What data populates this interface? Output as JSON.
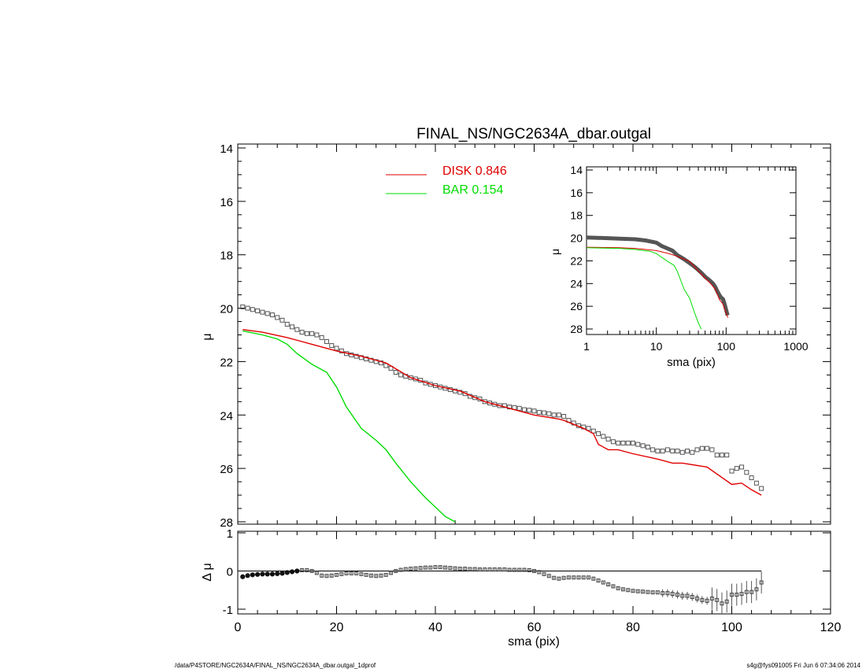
{
  "chart_data": [
    {
      "panel": "main",
      "type": "scatter",
      "title": "FINAL_NS/NGC2634A_dbar.outgal",
      "xlabel": "",
      "ylabel": "μ",
      "xlim": [
        0,
        120
      ],
      "ylim": [
        28,
        14
      ],
      "y_inverted": true,
      "x_tick_labels": [],
      "y_tick_labels": [
        "14",
        "16",
        "18",
        "20",
        "22",
        "24",
        "26",
        "28"
      ],
      "legend": [
        {
          "name": "DISK",
          "value": "0.846",
          "color": "#e00000"
        },
        {
          "name": "BAR",
          "value": "0.154",
          "color": "#00dd00"
        }
      ],
      "legend_position": "top-center",
      "series": [
        {
          "name": "data",
          "style": "markers",
          "color": "#555555",
          "x": [
            1,
            2,
            3,
            4,
            5,
            6,
            7,
            8,
            9,
            10,
            11,
            12,
            13,
            14,
            15,
            16,
            17,
            18,
            19,
            20,
            21,
            22,
            23,
            24,
            25,
            26,
            27,
            28,
            29,
            30,
            31,
            32,
            33,
            34,
            35,
            36,
            37,
            38,
            39,
            40,
            41,
            42,
            43,
            44,
            45,
            46,
            47,
            48,
            49,
            50,
            51,
            52,
            53,
            54,
            55,
            56,
            57,
            58,
            59,
            60,
            61,
            62,
            63,
            64,
            65,
            66,
            67,
            68,
            69,
            70,
            71,
            72,
            73,
            74,
            75,
            76,
            77,
            78,
            79,
            80,
            81,
            82,
            83,
            84,
            85,
            86,
            87,
            88,
            89,
            90,
            91,
            92,
            93,
            94,
            95,
            96,
            97,
            98,
            99,
            100,
            101,
            102,
            103,
            104,
            105,
            106
          ],
          "y": [
            19.95,
            20.0,
            20.05,
            20.1,
            20.15,
            20.2,
            20.25,
            20.35,
            20.45,
            20.6,
            20.7,
            20.8,
            20.9,
            20.95,
            20.95,
            21.0,
            21.1,
            21.25,
            21.4,
            21.5,
            21.6,
            21.7,
            21.75,
            21.8,
            21.85,
            21.9,
            21.95,
            22.0,
            22.05,
            22.15,
            22.25,
            22.4,
            22.5,
            22.55,
            22.6,
            22.65,
            22.7,
            22.8,
            22.85,
            22.9,
            22.95,
            23.0,
            23.05,
            23.1,
            23.15,
            23.2,
            23.3,
            23.35,
            23.4,
            23.5,
            23.55,
            23.6,
            23.65,
            23.65,
            23.7,
            23.72,
            23.75,
            23.8,
            23.82,
            23.85,
            23.9,
            23.92,
            23.95,
            24.0,
            24.0,
            24.05,
            24.2,
            24.3,
            24.4,
            24.45,
            24.5,
            24.6,
            24.7,
            24.8,
            24.9,
            25.0,
            25.05,
            25.05,
            25.05,
            25.05,
            25.1,
            25.15,
            25.2,
            25.3,
            25.35,
            25.35,
            25.3,
            25.35,
            25.35,
            25.4,
            25.35,
            25.4,
            25.3,
            25.25,
            25.25,
            25.3,
            25.5,
            25.5,
            25.5,
            26.1,
            26.0,
            25.95,
            26.15,
            26.35,
            26.55,
            26.75
          ]
        },
        {
          "name": "DISK",
          "style": "line",
          "color": "#e00000",
          "x": [
            1,
            5,
            10,
            15,
            20,
            25,
            30,
            35,
            40,
            45,
            50,
            55,
            60,
            65,
            66,
            70,
            72,
            73,
            75,
            77,
            80,
            85,
            88,
            90,
            95,
            100,
            102,
            104,
            106
          ],
          "y": [
            20.8,
            20.9,
            21.1,
            21.35,
            21.6,
            21.8,
            22.05,
            22.6,
            22.9,
            23.1,
            23.5,
            23.75,
            24.0,
            24.15,
            24.2,
            24.5,
            24.7,
            25.1,
            25.3,
            25.3,
            25.45,
            25.65,
            25.8,
            25.8,
            25.95,
            26.6,
            26.55,
            26.8,
            27.0
          ]
        },
        {
          "name": "BAR",
          "style": "line",
          "color": "#00dd00",
          "x": [
            1,
            5,
            8,
            10,
            12,
            15,
            18,
            20,
            22,
            25,
            28,
            30,
            32,
            35,
            38,
            40,
            42,
            44
          ],
          "y": [
            20.85,
            21.0,
            21.15,
            21.35,
            21.7,
            22.1,
            22.4,
            22.95,
            23.7,
            24.5,
            24.95,
            25.3,
            25.8,
            26.5,
            27.1,
            27.45,
            27.8,
            28.0
          ]
        }
      ]
    },
    {
      "panel": "inset",
      "type": "line",
      "title": "",
      "xlabel": "sma (pix)",
      "ylabel": "μ",
      "x_scale": "log",
      "xlim": [
        1,
        1000
      ],
      "ylim": [
        28,
        14
      ],
      "y_inverted": true,
      "x_tick_labels": [
        "1",
        "10",
        "100",
        "1000"
      ],
      "y_tick_labels": [
        "14",
        "16",
        "18",
        "20",
        "22",
        "24",
        "26",
        "28"
      ],
      "series": [
        {
          "name": "data",
          "style": "thick-line",
          "color": "#555555",
          "x": [
            1,
            2,
            3,
            5,
            7,
            10,
            12,
            15,
            17,
            20,
            25,
            30,
            35,
            40,
            45,
            50,
            55,
            60,
            65,
            70,
            75,
            80,
            85,
            90,
            95,
            100,
            105
          ],
          "y": [
            19.95,
            20.0,
            20.05,
            20.1,
            20.2,
            20.4,
            20.7,
            20.95,
            21.1,
            21.5,
            21.85,
            22.2,
            22.5,
            22.8,
            23.1,
            23.4,
            23.6,
            23.8,
            24.0,
            24.3,
            24.7,
            25.0,
            25.25,
            25.35,
            25.8,
            26.3,
            26.8
          ]
        },
        {
          "name": "DISK",
          "style": "line",
          "color": "#e00000",
          "x": [
            1,
            3,
            5,
            10,
            15,
            20,
            30,
            40,
            50,
            60,
            70,
            80,
            90,
            100,
            106
          ],
          "y": [
            20.8,
            20.85,
            20.9,
            21.1,
            21.35,
            21.6,
            22.05,
            22.9,
            23.5,
            24.0,
            24.5,
            25.4,
            25.8,
            26.6,
            27.0
          ]
        },
        {
          "name": "BAR",
          "style": "line",
          "color": "#00dd00",
          "x": [
            1,
            3,
            5,
            8,
            10,
            12,
            15,
            18,
            20,
            25,
            30,
            35,
            40,
            44
          ],
          "y": [
            20.85,
            20.9,
            21.0,
            21.15,
            21.35,
            21.7,
            22.1,
            22.4,
            22.95,
            24.5,
            25.3,
            26.5,
            27.45,
            28.0
          ]
        }
      ]
    },
    {
      "panel": "residual",
      "type": "scatter",
      "title": "",
      "xlabel": "sma (pix)",
      "ylabel": "Δ μ",
      "xlim": [
        0,
        120
      ],
      "ylim": [
        -1.1,
        1.1
      ],
      "x_tick_labels": [
        "0",
        "20",
        "40",
        "60",
        "80",
        "100",
        "120"
      ],
      "y_tick_labels": [
        "1",
        "0",
        "-1"
      ],
      "reference_line": 0,
      "series": [
        {
          "name": "residual",
          "style": "markers-with-errorbars",
          "color": "#555555",
          "x": [
            1,
            2,
            3,
            4,
            5,
            6,
            7,
            8,
            9,
            10,
            11,
            12,
            13,
            14,
            15,
            16,
            17,
            18,
            19,
            20,
            21,
            22,
            23,
            24,
            25,
            26,
            27,
            28,
            29,
            30,
            31,
            32,
            33,
            34,
            35,
            36,
            37,
            38,
            39,
            40,
            41,
            42,
            43,
            44,
            45,
            46,
            47,
            48,
            49,
            50,
            51,
            52,
            53,
            54,
            55,
            56,
            57,
            58,
            59,
            60,
            61,
            62,
            63,
            64,
            65,
            66,
            67,
            68,
            69,
            70,
            71,
            72,
            73,
            74,
            75,
            76,
            77,
            78,
            79,
            80,
            81,
            82,
            83,
            84,
            85,
            86,
            87,
            88,
            89,
            90,
            91,
            92,
            93,
            94,
            95,
            96,
            97,
            98,
            99,
            100,
            101,
            102,
            103,
            104,
            105,
            106
          ],
          "y": [
            -0.15,
            -0.12,
            -0.1,
            -0.09,
            -0.08,
            -0.08,
            -0.08,
            -0.07,
            -0.06,
            -0.04,
            -0.02,
            0.0,
            0.02,
            0.02,
            0.0,
            -0.05,
            -0.12,
            -0.13,
            -0.12,
            -0.1,
            -0.08,
            -0.06,
            -0.06,
            -0.06,
            -0.08,
            -0.1,
            -0.12,
            -0.13,
            -0.12,
            -0.1,
            -0.05,
            0.0,
            0.03,
            0.05,
            0.06,
            0.07,
            0.08,
            0.09,
            0.09,
            0.1,
            0.1,
            0.09,
            0.08,
            0.07,
            0.06,
            0.06,
            0.05,
            0.05,
            0.04,
            0.04,
            0.04,
            0.04,
            0.04,
            0.04,
            0.03,
            0.03,
            0.03,
            0.03,
            0.02,
            0.0,
            -0.03,
            -0.08,
            -0.13,
            -0.18,
            -0.2,
            -0.18,
            -0.17,
            -0.17,
            -0.17,
            -0.17,
            -0.17,
            -0.2,
            -0.25,
            -0.3,
            -0.35,
            -0.4,
            -0.45,
            -0.48,
            -0.5,
            -0.52,
            -0.53,
            -0.54,
            -0.55,
            -0.56,
            -0.56,
            -0.58,
            -0.58,
            -0.6,
            -0.62,
            -0.65,
            -0.65,
            -0.68,
            -0.72,
            -0.76,
            -0.78,
            -0.72,
            -0.76,
            -0.85,
            -0.8,
            -0.62,
            -0.62,
            -0.6,
            -0.55,
            -0.55,
            -0.48,
            -0.3
          ],
          "error_bars_visible": true
        }
      ]
    }
  ],
  "footer": {
    "path": "/data/P4STORE/NGC2634A/FINAL_NS/NGC2634A_dbar.outgal_1dprof",
    "stamp": "s4g@fys091005  Fri Jun  6 07:34:06 2014"
  }
}
